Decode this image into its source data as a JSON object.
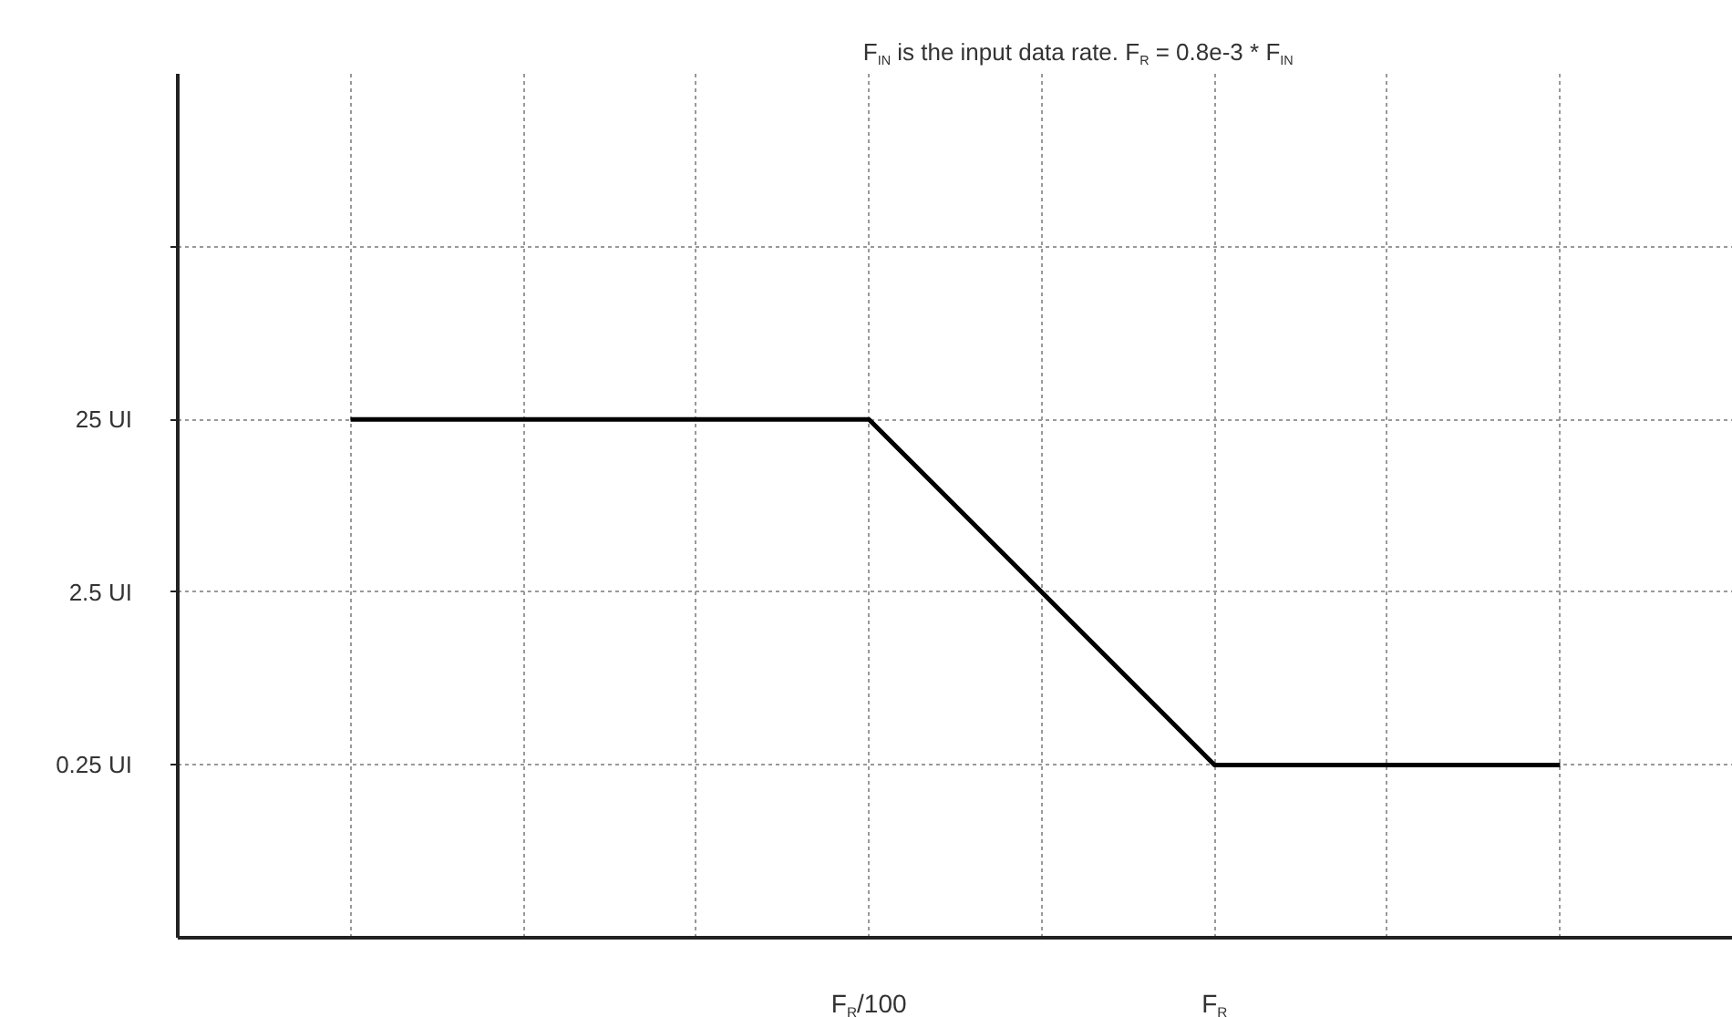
{
  "chart_data": {
    "type": "line",
    "title": "F$_{IN}$ is the input data rate. F$_{R}$ = 0.8e-3 * F$_{IN}$",
    "categories": [
      null,
      null,
      null,
      "F$_{R}$/100",
      null,
      "F$_{R}$",
      null,
      null
    ],
    "series": [
      {
        "color": "#000000",
        "values": [
          25,
          25,
          25,
          25,
          2.5,
          0.25,
          0.25,
          0.25
        ]
      }
    ],
    "log": "y",
    "grid": true,
    "marker": "none",
    "line_style": "solid",
    "ylim": [
      0.025,
      2500
    ],
    "yticks": [
      {
        "value": 0.25,
        "label": "0.25 UI"
      },
      {
        "value": 2.5,
        "label": "2.5 UI"
      },
      {
        "value": 25,
        "label": "25 UI"
      },
      {
        "value": 250,
        "label": null
      }
    ]
  }
}
